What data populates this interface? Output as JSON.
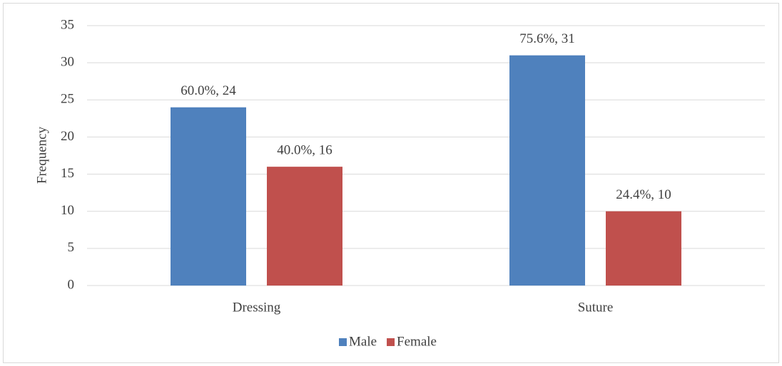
{
  "chart_data": {
    "type": "bar",
    "y_label": "Frequency",
    "categories": [
      "Dressing",
      "Suture"
    ],
    "series": [
      {
        "name": "Male",
        "color": "#4f81bd",
        "values": [
          24,
          31
        ],
        "value_labels": [
          "60.0%, 24",
          "75.6%, 31"
        ]
      },
      {
        "name": "Female",
        "color": "#c0504d",
        "values": [
          16,
          10
        ],
        "value_labels": [
          "40.0%, 16",
          "24.4%, 10"
        ]
      }
    ],
    "ylim": [
      0,
      35
    ],
    "yticks": [
      0,
      5,
      10,
      15,
      20,
      25,
      30,
      35
    ],
    "grid": true,
    "legend": "bottom"
  }
}
